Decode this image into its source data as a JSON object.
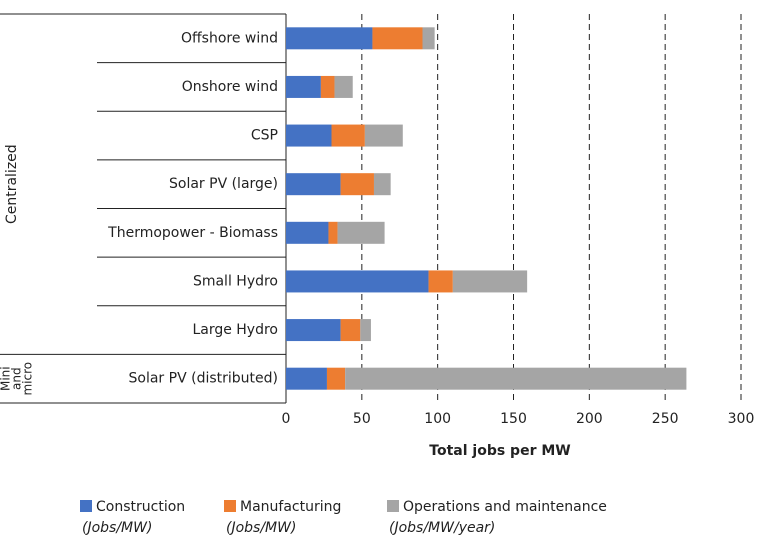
{
  "chart_data": {
    "type": "stacked-barh",
    "categories": [
      "Offshore wind",
      "Onshore wind",
      "CSP",
      "Solar PV (large)",
      "Thermopower  - Biomass",
      "Small Hydro",
      "Large Hydro",
      "Solar PV (distributed)"
    ],
    "groups": [
      {
        "lines": [
          "Centralized"
        ]
      },
      {
        "lines": [
          "Mini",
          "and",
          "micro"
        ]
      }
    ],
    "series": [
      {
        "name": "Construction",
        "unit": "(Jobs/MW)",
        "color": "#4472c4",
        "values": [
          57,
          23,
          30,
          36,
          28,
          94,
          36,
          27
        ]
      },
      {
        "name": "Manufacturing",
        "unit": "(Jobs/MW)",
        "color": "#ed7d31",
        "values": [
          33,
          9,
          22,
          22,
          6,
          16,
          13,
          12
        ]
      },
      {
        "name": "Operations and maintenance",
        "unit": "(Jobs/MW/year)",
        "color": "#a5a5a5",
        "values": [
          8,
          12,
          25,
          11,
          31,
          49,
          7,
          225
        ]
      }
    ],
    "xlabel": "Total jobs per MW",
    "xlim": [
      0,
      300
    ],
    "xticks": [
      0,
      50,
      100,
      150,
      200,
      250,
      300
    ],
    "grid": true
  }
}
